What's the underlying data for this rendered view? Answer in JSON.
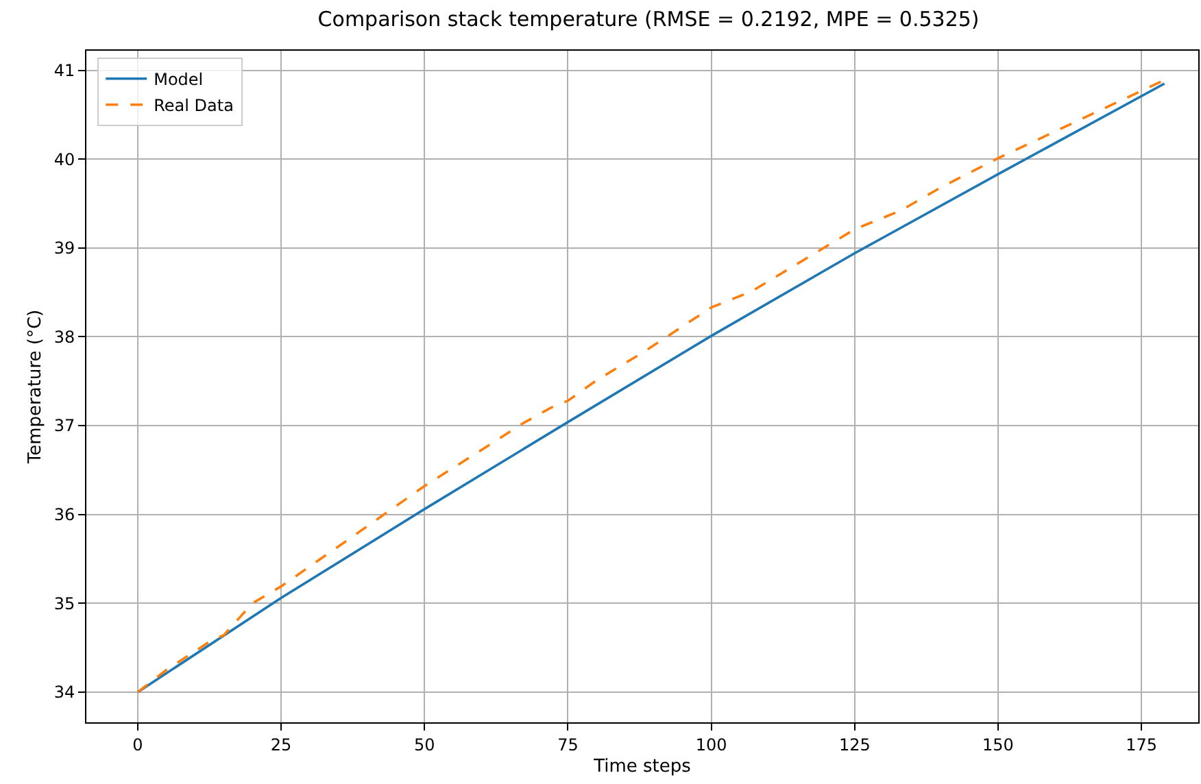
{
  "chart_data": {
    "type": "line",
    "title": "Comparison stack temperature (RMSE = 0.2192, MPE = 0.5325)",
    "xlabel": "Time steps",
    "ylabel": "Temperature (°C)",
    "series": [
      {
        "name": "Model",
        "color": "#1f77b4",
        "line_style": "solid",
        "x": [
          0,
          25,
          50,
          75,
          100,
          125,
          150,
          179
        ],
        "values": [
          34.0,
          35.06,
          36.06,
          37.04,
          38.01,
          38.94,
          39.83,
          40.85
        ]
      },
      {
        "name": "Real Data",
        "color": "#ff7f0e",
        "line_style": "dashed",
        "x": [
          0,
          5,
          10,
          13,
          15,
          20,
          25,
          37,
          50,
          62,
          67,
          72,
          75,
          80,
          88,
          100,
          107,
          125,
          133,
          140,
          150,
          179
        ],
        "values": [
          34.0,
          34.25,
          34.46,
          34.59,
          34.64,
          35.0,
          35.19,
          35.73,
          36.32,
          36.81,
          37.02,
          37.2,
          37.28,
          37.51,
          37.82,
          38.33,
          38.51,
          39.21,
          39.42,
          39.68,
          40.01,
          40.89
        ]
      }
    ],
    "xlim": [
      -8.95,
      184.9
    ],
    "ylim": [
      33.66,
      41.22
    ],
    "xticks": [
      0,
      25,
      50,
      75,
      100,
      125,
      150,
      175
    ],
    "yticks": [
      34,
      35,
      36,
      37,
      38,
      39,
      40,
      41
    ],
    "grid": true,
    "legend": "top left",
    "marker": "none"
  }
}
